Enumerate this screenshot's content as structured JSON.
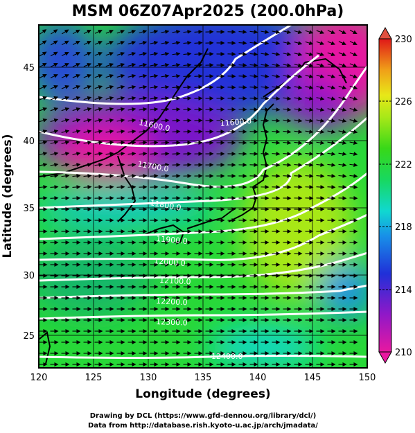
{
  "title": "MSM 06Z07Apr2025 (200.0hPa)",
  "xaxis": {
    "label": "Longitude (degrees)",
    "range": [
      120,
      150
    ],
    "ticks": [
      "120",
      "125",
      "130",
      "135",
      "140",
      "145",
      "150"
    ]
  },
  "yaxis": {
    "label": "Latitude  (degrees)",
    "range": [
      22.4,
      47.6
    ],
    "ticks": [
      "25",
      "30",
      "35",
      "40",
      "45"
    ]
  },
  "colorbar": {
    "range": [
      210,
      230
    ],
    "ticks": [
      "210",
      "214",
      "218",
      "222",
      "226",
      "230"
    ]
  },
  "contour_labels": [
    "11600.0",
    "11600.0",
    "11700.0",
    "11800.0",
    "11900.0",
    "12000.0",
    "12100.0",
    "12200.0",
    "12300.0",
    "12400.0"
  ],
  "credit": {
    "line1": "Drawing by DCL (https://www.gfd-dennou.org/library/dcl/)",
    "line2": "Data from http://database.rish.kyoto-u.ac.jp/arch/jmadata/"
  },
  "colors": {
    "magenta": "#e0108c",
    "purple": "#7a18c8",
    "blue": "#1838d8",
    "cyan": "#10d8c8",
    "green": "#18d830",
    "yellow_green": "#a8e818",
    "orange": "#f08018",
    "red": "#e01818",
    "contour": "#ffffff",
    "vectors": "#000000"
  }
}
